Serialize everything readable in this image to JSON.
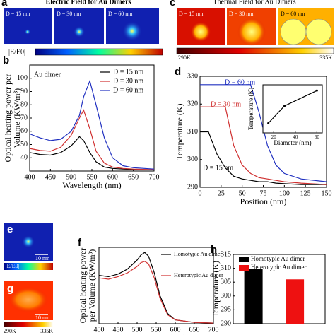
{
  "panels": {
    "a": {
      "label": "a",
      "title": "Electric Field for Au Dimers",
      "images": [
        "D = 15 nm",
        "D = 30 nm",
        "D = 60 nm"
      ],
      "colorbar": "|E/E0|"
    },
    "c": {
      "label": "c",
      "title": "Thermal Field for Au Dimers",
      "images": [
        "D = 15 nm",
        "D = 30 nm",
        "D = 60 nm"
      ],
      "colorbar_min": "290K",
      "colorbar_max": "335K"
    },
    "e": {
      "label": "e",
      "scale": "10 nm",
      "colorbar": "|E/E0|"
    },
    "g": {
      "label": "g",
      "scale": "10 nm",
      "colorbar_min": "290K",
      "colorbar_max": "335K"
    }
  },
  "chart_data": [
    {
      "type": "line",
      "label": "b",
      "annotation": "Au dimer",
      "xlabel": "Wavelength (nm)",
      "ylabel": [
        "Optical heating power per",
        "Volume (KW/m³)"
      ],
      "x": [
        400,
        425,
        450,
        475,
        500,
        520,
        530,
        545,
        560,
        580,
        600,
        625,
        650,
        700
      ],
      "series": [
        {
          "name": "D = 15 nm",
          "color": "#000000",
          "values": [
            44,
            42.5,
            42,
            44,
            49,
            56,
            53,
            44,
            37,
            33,
            32,
            31.5,
            31.2,
            31
          ]
        },
        {
          "name": "D = 30 nm",
          "color": "#d03030",
          "values": [
            47,
            45.5,
            45,
            48,
            57,
            70,
            76,
            62,
            45,
            36,
            33,
            32,
            31.5,
            31
          ]
        },
        {
          "name": "D = 60 nm",
          "color": "#2030c0",
          "values": [
            58,
            55,
            53,
            54,
            60,
            72,
            86,
            98,
            80,
            55,
            40,
            34,
            32.5,
            31.5
          ]
        }
      ],
      "xlim": [
        400,
        700
      ],
      "xticks": [
        400,
        450,
        500,
        550,
        600,
        650,
        700
      ],
      "ylim": [
        30,
        110
      ],
      "yticks": [
        40,
        50,
        60,
        70,
        80,
        90,
        100
      ],
      "legend": "upper right"
    },
    {
      "type": "line",
      "label": "d",
      "xlabel": "Position (nm)",
      "ylabel": [
        "Temperature (K)"
      ],
      "x": [
        0,
        10,
        15,
        20,
        30,
        40,
        50,
        60,
        70,
        80,
        90,
        100,
        120,
        150
      ],
      "series": [
        {
          "name": "D = 15 nm",
          "color": "#000000",
          "values": [
            310,
            310,
            306,
            302,
            297,
            294,
            293,
            292.5,
            292,
            292,
            291.5,
            291.3,
            291,
            291
          ]
        },
        {
          "name": "D = 30 nm",
          "color": "#d03030",
          "values": [
            319,
            319,
            319,
            319,
            319,
            305,
            298,
            295,
            293.5,
            293,
            292.5,
            292,
            291.5,
            291
          ]
        },
        {
          "name": "D = 60 nm",
          "color": "#2030c0",
          "values": [
            327,
            327,
            327,
            327,
            327,
            327,
            327,
            327,
            317,
            305,
            298,
            295,
            293,
            292
          ]
        }
      ],
      "xlim": [
        0,
        150
      ],
      "xticks": [
        0,
        25,
        50,
        75,
        100,
        125,
        150
      ],
      "ylim": [
        290,
        330
      ],
      "yticks": [
        290,
        300,
        310,
        320,
        330
      ],
      "inset": {
        "type": "line",
        "xlabel": "Diameter (nm)",
        "ylabel": [
          "Temperature (K)"
        ],
        "x": [
          15,
          30,
          60
        ],
        "series": [
          {
            "name": "Temperature",
            "color": "#000000",
            "values": [
              310,
              319,
              327
            ]
          }
        ],
        "xlim": [
          10,
          65
        ],
        "xticks": [
          20,
          40,
          60
        ],
        "ylim": [
          305,
          330
        ]
      }
    },
    {
      "type": "line",
      "label": "f",
      "xlabel": "Wavelength (nm)",
      "ylabel": [
        "Optical heating power",
        "per Volume (KW/m³)"
      ],
      "x": [
        400,
        425,
        450,
        475,
        500,
        510,
        520,
        530,
        545,
        560,
        580,
        600,
        650,
        700
      ],
      "series": [
        {
          "name": "Homotypic Au dimer",
          "color": "#000000",
          "values": [
            38,
            37,
            39,
            43,
            50,
            54,
            56,
            53,
            40,
            22,
            8,
            3,
            1,
            0.5
          ]
        },
        {
          "name": "Heterotypic Au dimer",
          "color": "#d03030",
          "values": [
            36,
            35,
            37,
            40,
            45,
            48,
            49,
            47,
            36,
            20,
            7,
            3,
            1,
            0.5
          ]
        }
      ],
      "xlim": [
        400,
        700
      ],
      "xticks": [
        400,
        450,
        500,
        550,
        600,
        650,
        700
      ],
      "ylim": [
        0,
        60
      ],
      "legend": "upper right"
    },
    {
      "type": "bar",
      "label": "h",
      "ylabel": [
        "Temperature (K)"
      ],
      "series": [
        {
          "name": "Homotypic Au dimer",
          "color": "#000000",
          "values": [
            309.8
          ]
        },
        {
          "name": "Heterotypic Au dimer",
          "color": "#ee1111",
          "values": [
            306
          ]
        }
      ],
      "ylim": [
        290,
        315
      ],
      "yticks": [
        290,
        295,
        300,
        305,
        310,
        315
      ],
      "legend": "upper right"
    }
  ]
}
